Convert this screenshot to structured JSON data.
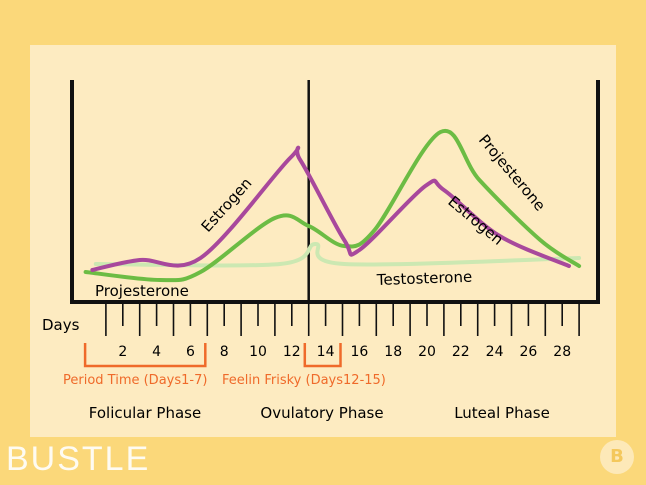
{
  "chart_data": {
    "type": "line",
    "xlabel": "Days",
    "x_ticks": [
      2,
      4,
      6,
      8,
      10,
      12,
      14,
      16,
      18,
      20,
      22,
      24,
      26,
      28
    ],
    "xlim": [
      0,
      30
    ],
    "ylim": [
      0,
      100
    ],
    "grid": false,
    "divider_day": 13,
    "series": [
      {
        "name": "Estrogen",
        "color": "#a8489c",
        "points": [
          [
            0.2,
            15
          ],
          [
            3,
            20
          ],
          [
            6.6,
            21
          ],
          [
            11.9,
            71
          ],
          [
            12.5,
            70
          ],
          [
            15.1,
            30
          ],
          [
            16,
            25
          ],
          [
            19.9,
            57
          ],
          [
            21,
            55
          ],
          [
            24.3,
            32
          ],
          [
            28.4,
            17
          ]
        ]
      },
      {
        "name": "Projesterone",
        "color": "#6cbc44",
        "points": [
          [
            -0.2,
            14
          ],
          [
            4.2,
            10
          ],
          [
            6.6,
            14
          ],
          [
            11,
            41
          ],
          [
            13,
            37
          ],
          [
            15.1,
            27
          ],
          [
            16.9,
            35
          ],
          [
            20.8,
            84
          ],
          [
            23.1,
            60
          ],
          [
            26.7,
            30
          ],
          [
            29,
            17
          ]
        ]
      },
      {
        "name": "Testosterone",
        "color": "#cce8b2",
        "points": [
          [
            0.4,
            18
          ],
          [
            11.3,
            18
          ],
          [
            13.4,
            28
          ],
          [
            15.1,
            18
          ],
          [
            29,
            21
          ]
        ]
      }
    ],
    "curve_labels": {
      "estrogen_1": "Estrogen",
      "estrogen_2": "Estrogen",
      "projesterone_1": "Projesterone",
      "projesterone_2": "Projesterone",
      "testosterone": "Testosterone"
    },
    "brackets": [
      {
        "label": "Period Time (Days1-7)",
        "from": -1,
        "to": 7,
        "color": "#ef6a2a"
      },
      {
        "label": "Feelin Frisky (Days12-15)",
        "from": 12,
        "to": 15,
        "color": "#ef6a2a"
      }
    ],
    "phases": [
      "Folicular Phase",
      "Ovulatory Phase",
      "Luteal Phase"
    ]
  },
  "brand": {
    "logo": "BUSTLE",
    "badge": "B"
  }
}
